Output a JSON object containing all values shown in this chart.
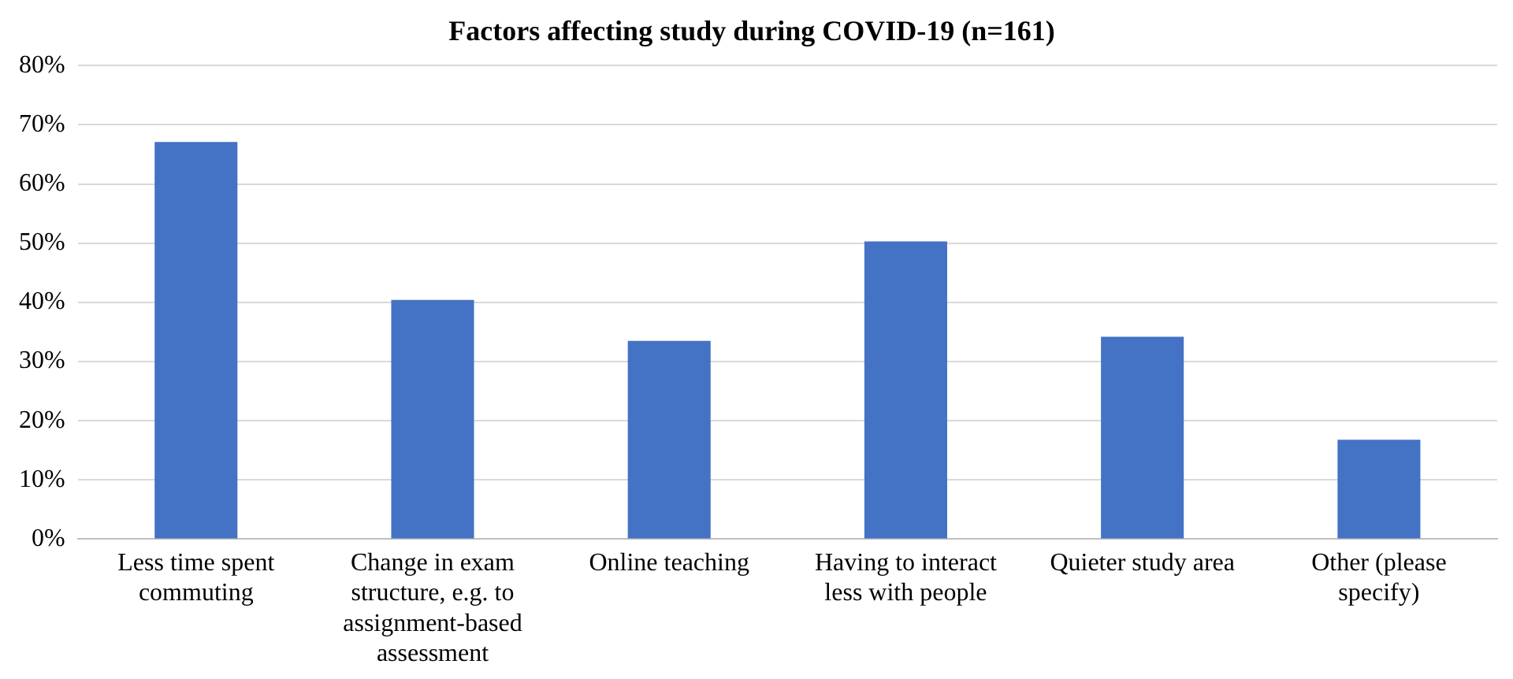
{
  "chart_data": {
    "type": "bar",
    "title": "Factors affecting study during COVID-19 (n=161)",
    "categories": [
      "Less time spent commuting",
      "Change in exam structure, e.g. to assignment-based assessment",
      "Online teaching",
      "Having to interact less with people",
      "Quieter study area",
      "Other (please specify)"
    ],
    "values": [
      67.1,
      40.4,
      33.5,
      50.3,
      34.2,
      16.8
    ],
    "color": "#4472c4",
    "ylim": [
      0,
      80
    ],
    "yticks": [
      {
        "value": 0,
        "label": "0%"
      },
      {
        "value": 10,
        "label": "10%"
      },
      {
        "value": 20,
        "label": "20%"
      },
      {
        "value": 30,
        "label": "30%"
      },
      {
        "value": 40,
        "label": "40%"
      },
      {
        "value": 50,
        "label": "50%"
      },
      {
        "value": 60,
        "label": "60%"
      },
      {
        "value": 70,
        "label": "70%"
      },
      {
        "value": 80,
        "label": "80%"
      }
    ],
    "grid": "y",
    "legend": false
  }
}
